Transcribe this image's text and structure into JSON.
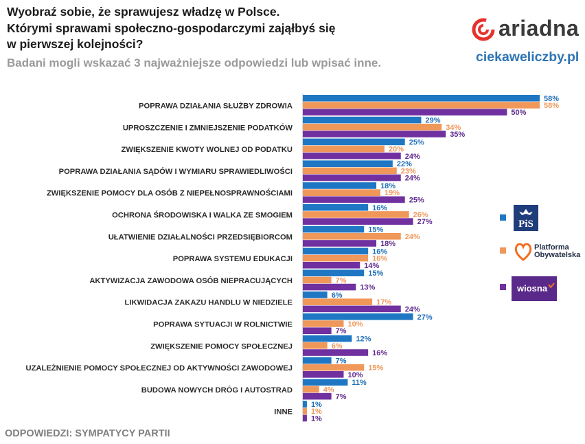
{
  "header": {
    "title_lines": [
      "Wyobraź sobie, że sprawujesz władzę w Polsce.",
      "Którymi sprawami społeczno-gospodarczymi zająłbyś się",
      "w pierwszej kolejności?"
    ],
    "subtitle": "Badani mogli wskazać 3 najważniejsze odpowiedzi lub wpisać inne.",
    "brand_name": "ariadna",
    "site": "ciekaweliczby.pl"
  },
  "footer": "ODPOWIEDZI: SYMPATYCY PARTII",
  "legend": {
    "pis": "PiS",
    "po_line1": "Platforma",
    "po_line2": "Obywatelska",
    "wiosna": "wiosna"
  },
  "colors": {
    "pis": "#1f77c4",
    "po": "#f0975a",
    "wiosna": "#7030a0",
    "pis_label": "#1f6fb8",
    "po_label": "#f0975a",
    "wiosna_label": "#5f2a8e"
  },
  "chart_data": {
    "type": "bar",
    "orientation": "horizontal",
    "title": "Wyobraź sobie, że sprawujesz władzę w Polsce. Którymi sprawami społeczno-gospodarczymi zająłbyś się w pierwszej kolejności?",
    "xlim": [
      0,
      58
    ],
    "value_suffix": "%",
    "categories": [
      "POPRAWA DZIAŁANIA SŁUŻBY ZDROWIA",
      "UPROSZCZENIE I ZMNIEJSZENIE PODATKÓW",
      "ZWIĘKSZENIE KWOTY WOLNEJ OD PODATKU",
      "POPRAWA DZIAŁANIA SĄDÓW I WYMIARU SPRAWIEDLIWOŚCI",
      "ZWIĘKSZENIE POMOCY DLA OSÓB Z NIEPEŁNOSPRAWNOŚCIAMI",
      "OCHRONA ŚRODOWISKA I WALKA ZE SMOGIEM",
      "UŁATWIENIE DZIAŁALNOŚCI PRZEDSIĘBIORCOM",
      "POPRAWA SYSTEMU EDUKACJI",
      "AKTYWIZACJA ZAWODOWA OSÓB NIEPRACUJĄCYCH",
      "LIKWIDACJA ZAKAZU HANDLU W NIEDZIELE",
      "POPRAWA SYTUACJI W ROLNICTWIE",
      "ZWIĘKSZENIE POMOCY SPOŁECZNEJ",
      "UZALEŻNIENIE POMOCY SPOŁECZNEJ OD AKTYWNOŚCI ZAWODOWEJ",
      "BUDOWA NOWYCH DRÓG I AUTOSTRAD",
      "INNE"
    ],
    "series": [
      {
        "name": "PiS",
        "key": "pis",
        "values": [
          58,
          29,
          25,
          22,
          18,
          16,
          15,
          16,
          15,
          6,
          27,
          12,
          7,
          11,
          1
        ]
      },
      {
        "name": "Platforma Obywatelska",
        "key": "po",
        "values": [
          58,
          34,
          20,
          23,
          19,
          26,
          24,
          16,
          7,
          17,
          10,
          6,
          15,
          4,
          1
        ]
      },
      {
        "name": "Wiosna",
        "key": "wiosna",
        "values": [
          50,
          35,
          24,
          24,
          25,
          27,
          18,
          14,
          13,
          24,
          7,
          16,
          10,
          7,
          1
        ]
      }
    ]
  }
}
